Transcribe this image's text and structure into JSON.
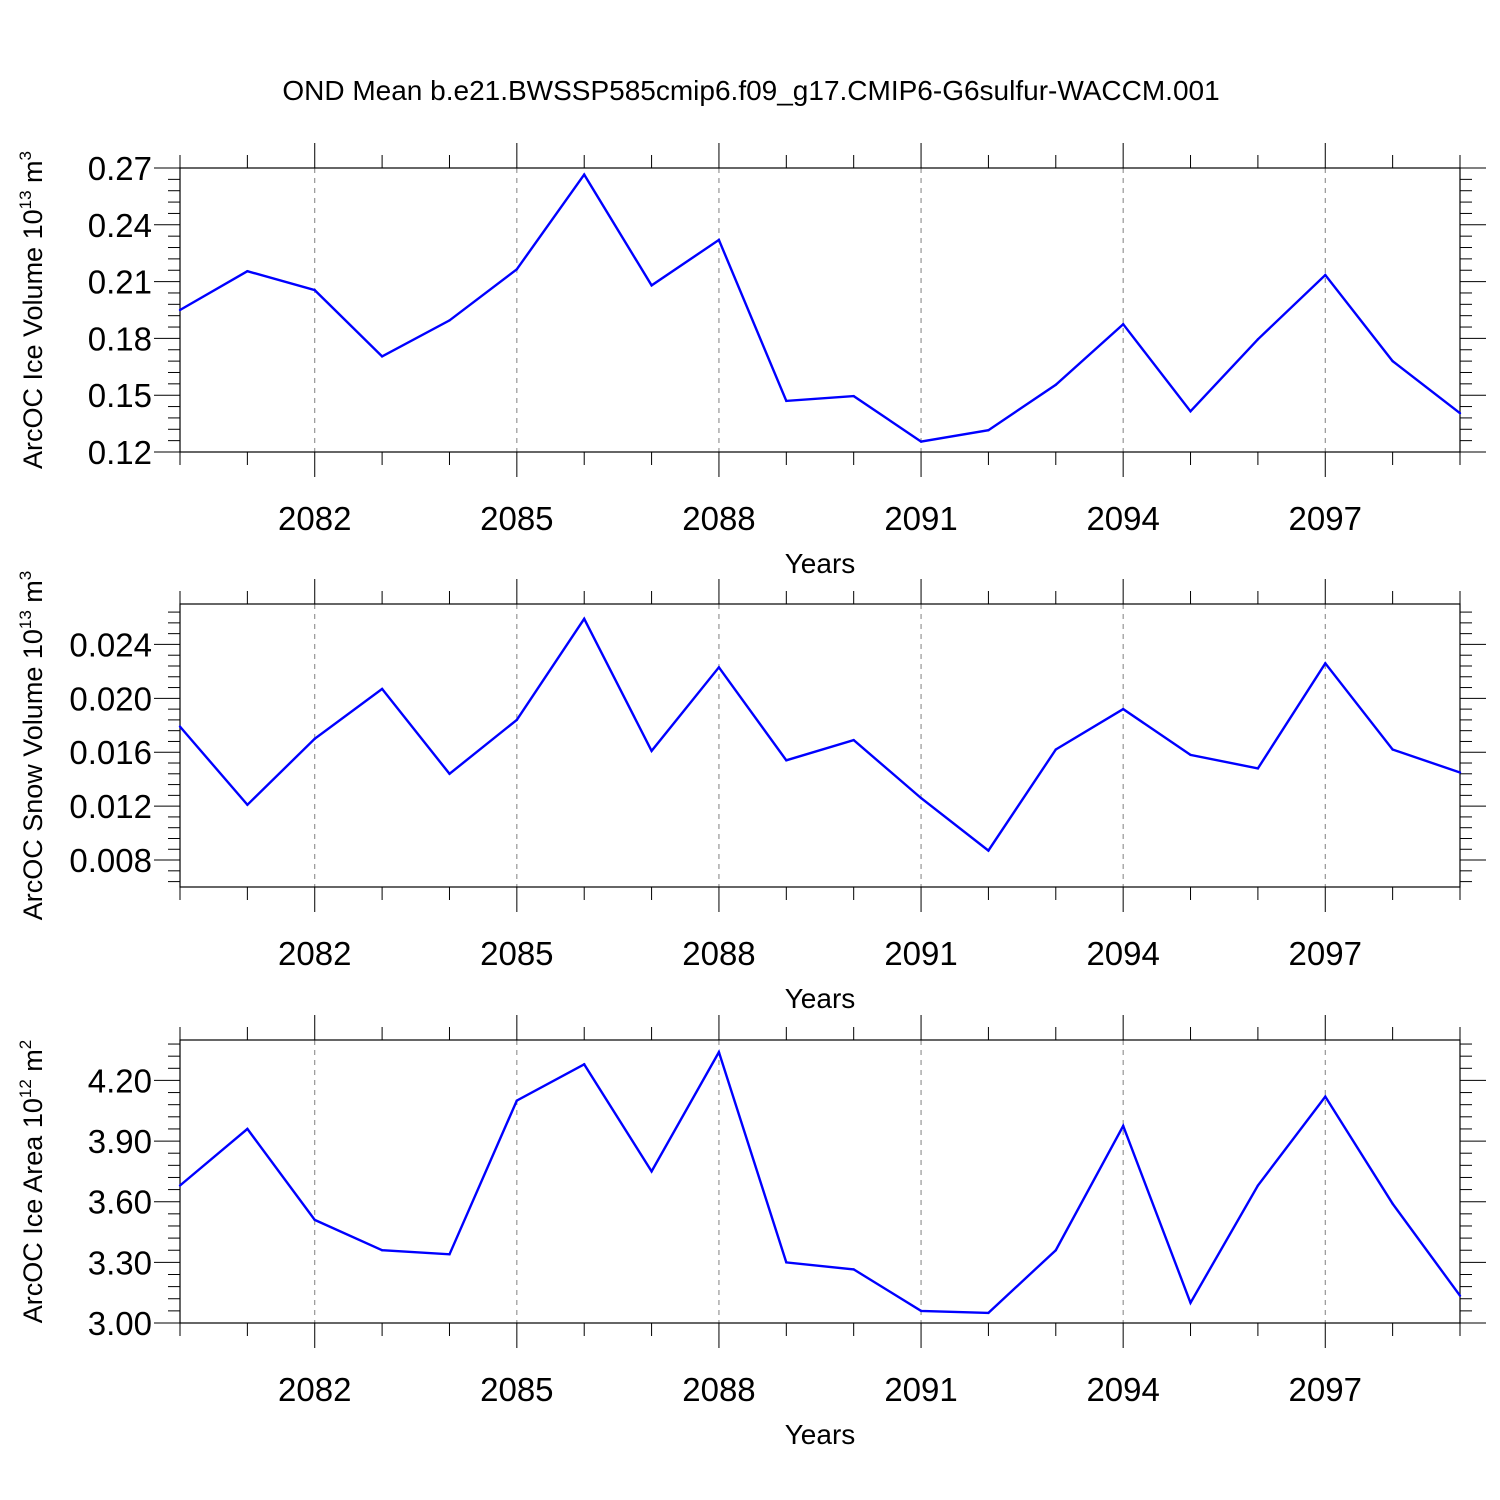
{
  "figure_title": "OND Mean b.e21.BWSSP585cmip6.f09_g17.CMIP6-G6sulfur-WACCM.001",
  "colors": {
    "line": "#0000ff",
    "frame": "#000000",
    "grid": "#808080"
  },
  "chart_data": [
    {
      "type": "line",
      "title": "",
      "ylabel": "ArcOC Ice Volume",
      "ylabel_unit_base": "10",
      "ylabel_unit_exp": "13",
      "ylabel_unit_tail": "m",
      "ylabel_unit_tail_exp": "3",
      "xlabel": "Years",
      "xlim": [
        2080,
        2099
      ],
      "ylim": [
        0.12,
        0.27
      ],
      "xticks": [
        2082,
        2085,
        2088,
        2091,
        2094,
        2097
      ],
      "xtick_labels": [
        "2082",
        "2085",
        "2088",
        "2091",
        "2094",
        "2097"
      ],
      "yticks": [
        0.12,
        0.15,
        0.18,
        0.21,
        0.24,
        0.27
      ],
      "ytick_labels": [
        "0.12",
        "0.15",
        "0.18",
        "0.21",
        "0.24",
        "0.27"
      ],
      "grid": "vertical dashed at x ticks",
      "series": [
        {
          "name": "ArcOC Ice Volume",
          "x": [
            2080,
            2081,
            2082,
            2083,
            2084,
            2085,
            2086,
            2087,
            2088,
            2089,
            2090,
            2091,
            2092,
            2093,
            2094,
            2095,
            2096,
            2097,
            2098,
            2099
          ],
          "values": [
            0.195,
            0.2155,
            0.2055,
            0.1705,
            0.1895,
            0.2165,
            0.2665,
            0.208,
            0.232,
            0.147,
            0.1495,
            0.1255,
            0.1315,
            0.1555,
            0.1875,
            0.1415,
            0.1795,
            0.2135,
            0.168,
            0.1405
          ]
        }
      ]
    },
    {
      "type": "line",
      "title": "",
      "ylabel": "ArcOC Snow Volume",
      "ylabel_unit_base": "10",
      "ylabel_unit_exp": "13",
      "ylabel_unit_tail": "m",
      "ylabel_unit_tail_exp": "3",
      "xlabel": "Years",
      "xlim": [
        2080,
        2099
      ],
      "ylim": [
        0.006,
        0.027
      ],
      "xticks": [
        2082,
        2085,
        2088,
        2091,
        2094,
        2097
      ],
      "xtick_labels": [
        "2082",
        "2085",
        "2088",
        "2091",
        "2094",
        "2097"
      ],
      "yticks": [
        0.008,
        0.012,
        0.016,
        0.02,
        0.024
      ],
      "ytick_labels": [
        "0.008",
        "0.012",
        "0.016",
        "0.020",
        "0.024"
      ],
      "grid": "vertical dashed at x ticks",
      "series": [
        {
          "name": "ArcOC Snow Volume",
          "x": [
            2080,
            2081,
            2082,
            2083,
            2084,
            2085,
            2086,
            2087,
            2088,
            2089,
            2090,
            2091,
            2092,
            2093,
            2094,
            2095,
            2096,
            2097,
            2098,
            2099
          ],
          "values": [
            0.0179,
            0.0121,
            0.017,
            0.0207,
            0.0144,
            0.0184,
            0.0259,
            0.0161,
            0.0223,
            0.0154,
            0.0169,
            0.0126,
            0.0087,
            0.0162,
            0.0192,
            0.0158,
            0.0148,
            0.0226,
            0.0162,
            0.0145
          ]
        }
      ]
    },
    {
      "type": "line",
      "title": "",
      "ylabel": "ArcOC Ice Area",
      "ylabel_unit_base": "10",
      "ylabel_unit_exp": "12",
      "ylabel_unit_tail": "m",
      "ylabel_unit_tail_exp": "2",
      "xlabel": "Years",
      "xlim": [
        2080,
        2099
      ],
      "ylim": [
        3.0,
        4.4
      ],
      "xticks": [
        2082,
        2085,
        2088,
        2091,
        2094,
        2097
      ],
      "xtick_labels": [
        "2082",
        "2085",
        "2088",
        "2091",
        "2094",
        "2097"
      ],
      "yticks": [
        3.0,
        3.3,
        3.6,
        3.9,
        4.2
      ],
      "ytick_labels": [
        "3.00",
        "3.30",
        "3.60",
        "3.90",
        "4.20"
      ],
      "grid": "vertical dashed at x ticks",
      "series": [
        {
          "name": "ArcOC Ice Area",
          "x": [
            2080,
            2081,
            2082,
            2083,
            2084,
            2085,
            2086,
            2087,
            2088,
            2089,
            2090,
            2091,
            2092,
            2093,
            2094,
            2095,
            2096,
            2097,
            2098,
            2099
          ],
          "values": [
            3.68,
            3.96,
            3.51,
            3.36,
            3.34,
            4.1,
            4.28,
            3.75,
            4.34,
            3.3,
            3.265,
            3.06,
            3.05,
            3.36,
            3.975,
            3.1,
            3.68,
            4.12,
            3.59,
            3.135
          ]
        }
      ]
    }
  ]
}
